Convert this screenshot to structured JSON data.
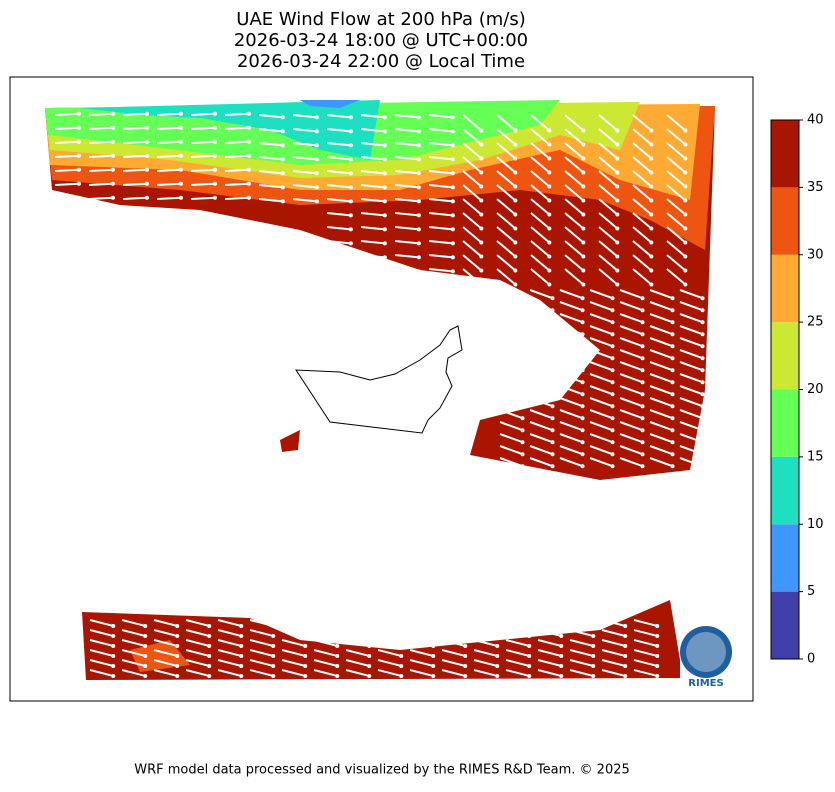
{
  "title": [
    "UAE Wind Flow at 200 hPa (m/s)",
    "2026-03-24 18:00 @ UTC+00:00",
    "2026-03-24 22:00 @ Local Time"
  ],
  "colorbar": {
    "lim": [
      0,
      40
    ],
    "ticks": [
      0,
      5,
      10,
      15,
      20,
      25,
      30,
      35,
      40
    ],
    "colors": [
      "#4040a8",
      "#3f96ff",
      "#1de0c0",
      "#66ff55",
      "#cce833",
      "#ffaa33",
      "#ee5511",
      "#aa1500"
    ]
  },
  "logo_text": "RIMES",
  "footer": "WRF model data processed and visualized by the RIMES R&D Team. © 2025"
}
